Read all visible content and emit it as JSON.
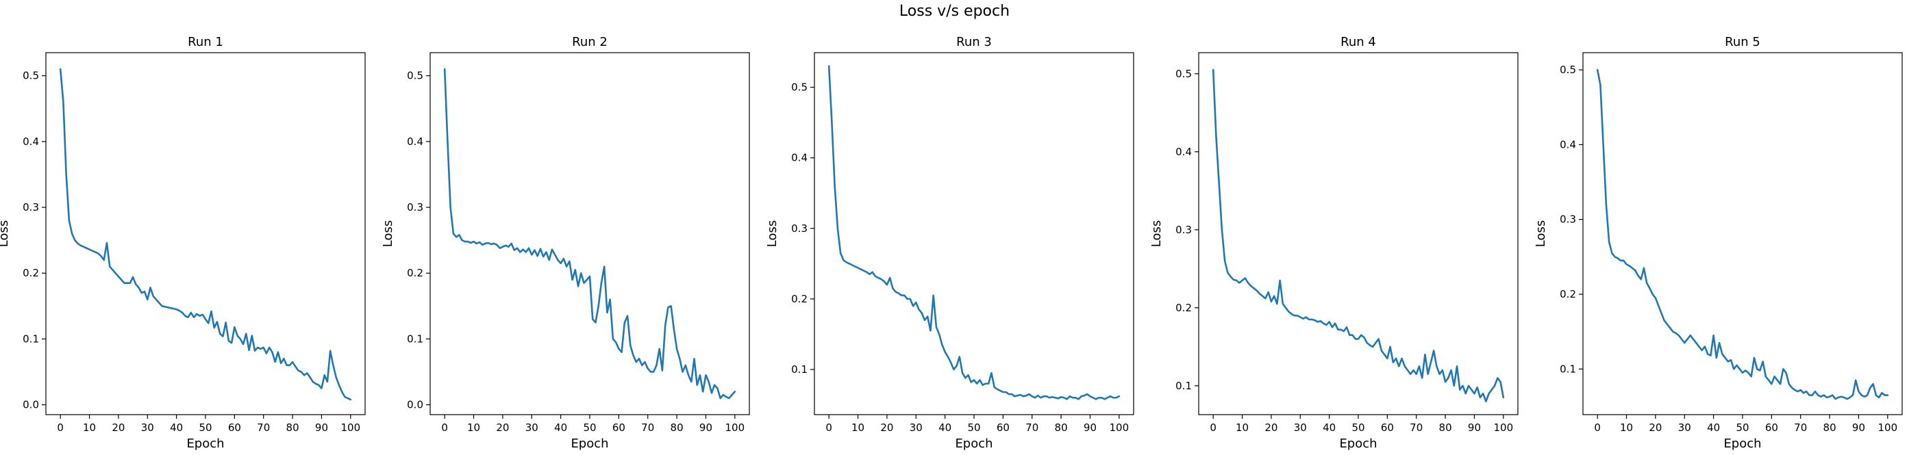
{
  "figure": {
    "title": "Loss v/s epoch"
  },
  "chart_data": [
    {
      "type": "line",
      "title": "Run 1",
      "xlabel": "Epoch",
      "ylabel": "Loss",
      "xlim": [
        -5,
        105
      ],
      "ylim": [
        -0.015,
        0.535
      ],
      "xticks": [
        0,
        10,
        20,
        30,
        40,
        50,
        60,
        70,
        80,
        90,
        100
      ],
      "yticks": [
        0.0,
        0.1,
        0.2,
        0.3,
        0.4,
        0.5
      ],
      "ytick_labels": [
        "0.0",
        "0.1",
        "0.2",
        "0.3",
        "0.4",
        "0.5"
      ],
      "grid": false,
      "color": "#1f77b4",
      "x": [
        0,
        1,
        2,
        3,
        4,
        5,
        6,
        7,
        8,
        9,
        10,
        11,
        12,
        13,
        14,
        15,
        16,
        17,
        18,
        19,
        20,
        21,
        22,
        23,
        24,
        25,
        26,
        27,
        28,
        29,
        30,
        31,
        32,
        33,
        34,
        35,
        36,
        37,
        38,
        39,
        40,
        41,
        42,
        43,
        44,
        45,
        46,
        47,
        48,
        49,
        50,
        51,
        52,
        53,
        54,
        55,
        56,
        57,
        58,
        59,
        60,
        61,
        62,
        63,
        64,
        65,
        66,
        67,
        68,
        69,
        70,
        71,
        72,
        73,
        74,
        75,
        76,
        77,
        78,
        79,
        80,
        81,
        82,
        83,
        84,
        85,
        86,
        87,
        88,
        89,
        90,
        91,
        92,
        93,
        94,
        95,
        96,
        97,
        98,
        99,
        100
      ],
      "y": [
        0.51,
        0.46,
        0.35,
        0.28,
        0.26,
        0.25,
        0.245,
        0.242,
        0.24,
        0.238,
        0.236,
        0.234,
        0.232,
        0.23,
        0.226,
        0.22,
        0.246,
        0.21,
        0.205,
        0.2,
        0.195,
        0.19,
        0.185,
        0.185,
        0.185,
        0.194,
        0.183,
        0.178,
        0.17,
        0.172,
        0.16,
        0.178,
        0.165,
        0.16,
        0.155,
        0.15,
        0.149,
        0.148,
        0.147,
        0.146,
        0.145,
        0.143,
        0.14,
        0.135,
        0.133,
        0.14,
        0.133,
        0.138,
        0.135,
        0.137,
        0.13,
        0.124,
        0.142,
        0.117,
        0.126,
        0.108,
        0.104,
        0.125,
        0.097,
        0.094,
        0.118,
        0.105,
        0.1,
        0.092,
        0.108,
        0.083,
        0.105,
        0.082,
        0.087,
        0.085,
        0.087,
        0.078,
        0.087,
        0.08,
        0.065,
        0.08,
        0.063,
        0.07,
        0.06,
        0.06,
        0.065,
        0.058,
        0.052,
        0.05,
        0.045,
        0.048,
        0.042,
        0.035,
        0.032,
        0.03,
        0.025,
        0.045,
        0.035,
        0.082,
        0.06,
        0.042,
        0.03,
        0.02,
        0.012,
        0.01,
        0.008
      ]
    },
    {
      "type": "line",
      "title": "Run 2",
      "xlabel": "Epoch",
      "ylabel": "Loss",
      "xlim": [
        -5,
        105
      ],
      "ylim": [
        -0.015,
        0.535
      ],
      "xticks": [
        0,
        10,
        20,
        30,
        40,
        50,
        60,
        70,
        80,
        90,
        100
      ],
      "yticks": [
        0.0,
        0.1,
        0.2,
        0.3,
        0.4,
        0.5
      ],
      "ytick_labels": [
        "0.0",
        "0.1",
        "0.2",
        "0.3",
        "0.4",
        "0.5"
      ],
      "grid": false,
      "color": "#1f77b4",
      "x": [
        0,
        1,
        2,
        3,
        4,
        5,
        6,
        7,
        8,
        9,
        10,
        11,
        12,
        13,
        14,
        15,
        16,
        17,
        18,
        19,
        20,
        21,
        22,
        23,
        24,
        25,
        26,
        27,
        28,
        29,
        30,
        31,
        32,
        33,
        34,
        35,
        36,
        37,
        38,
        39,
        40,
        41,
        42,
        43,
        44,
        45,
        46,
        47,
        48,
        49,
        50,
        51,
        52,
        53,
        54,
        55,
        56,
        57,
        58,
        59,
        60,
        61,
        62,
        63,
        64,
        65,
        66,
        67,
        68,
        69,
        70,
        71,
        72,
        73,
        74,
        75,
        76,
        77,
        78,
        79,
        80,
        81,
        82,
        83,
        84,
        85,
        86,
        87,
        88,
        89,
        90,
        91,
        92,
        93,
        94,
        95,
        96,
        97,
        98,
        99,
        100
      ],
      "y": [
        0.51,
        0.4,
        0.3,
        0.26,
        0.255,
        0.258,
        0.25,
        0.248,
        0.248,
        0.246,
        0.248,
        0.245,
        0.247,
        0.243,
        0.245,
        0.246,
        0.244,
        0.245,
        0.243,
        0.238,
        0.24,
        0.242,
        0.24,
        0.245,
        0.235,
        0.238,
        0.232,
        0.236,
        0.232,
        0.238,
        0.228,
        0.235,
        0.226,
        0.237,
        0.225,
        0.232,
        0.22,
        0.236,
        0.228,
        0.22,
        0.215,
        0.222,
        0.21,
        0.218,
        0.19,
        0.205,
        0.18,
        0.2,
        0.185,
        0.19,
        0.195,
        0.13,
        0.125,
        0.15,
        0.185,
        0.21,
        0.14,
        0.16,
        0.1,
        0.095,
        0.085,
        0.08,
        0.125,
        0.135,
        0.09,
        0.075,
        0.065,
        0.07,
        0.06,
        0.065,
        0.055,
        0.05,
        0.05,
        0.06,
        0.085,
        0.052,
        0.12,
        0.148,
        0.15,
        0.115,
        0.085,
        0.07,
        0.05,
        0.06,
        0.045,
        0.035,
        0.07,
        0.03,
        0.045,
        0.02,
        0.045,
        0.035,
        0.018,
        0.03,
        0.025,
        0.01,
        0.015,
        0.012,
        0.01,
        0.015,
        0.02
      ]
    },
    {
      "type": "line",
      "title": "Run 3",
      "xlabel": "Epoch",
      "ylabel": "Loss",
      "xlim": [
        -5,
        105
      ],
      "ylim": [
        0.036,
        0.549
      ],
      "xticks": [
        0,
        10,
        20,
        30,
        40,
        50,
        60,
        70,
        80,
        90,
        100
      ],
      "yticks": [
        0.1,
        0.2,
        0.3,
        0.4,
        0.5
      ],
      "ytick_labels": [
        "0.1",
        "0.2",
        "0.3",
        "0.4",
        "0.5"
      ],
      "grid": false,
      "color": "#1f77b4",
      "x": [
        0,
        1,
        2,
        3,
        4,
        5,
        6,
        7,
        8,
        9,
        10,
        11,
        12,
        13,
        14,
        15,
        16,
        17,
        18,
        19,
        20,
        21,
        22,
        23,
        24,
        25,
        26,
        27,
        28,
        29,
        30,
        31,
        32,
        33,
        34,
        35,
        36,
        37,
        38,
        39,
        40,
        41,
        42,
        43,
        44,
        45,
        46,
        47,
        48,
        49,
        50,
        51,
        52,
        53,
        54,
        55,
        56,
        57,
        58,
        59,
        60,
        61,
        62,
        63,
        64,
        65,
        66,
        67,
        68,
        69,
        70,
        71,
        72,
        73,
        74,
        75,
        76,
        77,
        78,
        79,
        80,
        81,
        82,
        83,
        84,
        85,
        86,
        87,
        88,
        89,
        90,
        91,
        92,
        93,
        94,
        95,
        96,
        97,
        98,
        99,
        100
      ],
      "y": [
        0.53,
        0.45,
        0.36,
        0.3,
        0.265,
        0.255,
        0.252,
        0.25,
        0.248,
        0.246,
        0.244,
        0.242,
        0.24,
        0.238,
        0.235,
        0.238,
        0.232,
        0.23,
        0.228,
        0.225,
        0.22,
        0.23,
        0.215,
        0.21,
        0.208,
        0.205,
        0.205,
        0.2,
        0.2,
        0.19,
        0.195,
        0.185,
        0.18,
        0.17,
        0.175,
        0.155,
        0.205,
        0.16,
        0.15,
        0.135,
        0.125,
        0.118,
        0.11,
        0.1,
        0.105,
        0.118,
        0.095,
        0.088,
        0.092,
        0.082,
        0.085,
        0.08,
        0.085,
        0.078,
        0.08,
        0.08,
        0.095,
        0.075,
        0.072,
        0.07,
        0.068,
        0.068,
        0.065,
        0.065,
        0.062,
        0.063,
        0.064,
        0.062,
        0.063,
        0.065,
        0.062,
        0.06,
        0.063,
        0.06,
        0.062,
        0.062,
        0.06,
        0.061,
        0.06,
        0.059,
        0.061,
        0.06,
        0.058,
        0.062,
        0.06,
        0.06,
        0.058,
        0.062,
        0.063,
        0.065,
        0.062,
        0.06,
        0.058,
        0.06,
        0.06,
        0.058,
        0.06,
        0.062,
        0.06,
        0.06,
        0.062
      ]
    },
    {
      "type": "line",
      "title": "Run 4",
      "xlabel": "Epoch",
      "ylabel": "Loss",
      "xlim": [
        -5,
        105
      ],
      "ylim": [
        0.063,
        0.527
      ],
      "xticks": [
        0,
        10,
        20,
        30,
        40,
        50,
        60,
        70,
        80,
        90,
        100
      ],
      "yticks": [
        0.1,
        0.2,
        0.3,
        0.4,
        0.5
      ],
      "ytick_labels": [
        "0.1",
        "0.2",
        "0.3",
        "0.4",
        "0.5"
      ],
      "grid": false,
      "color": "#1f77b4",
      "x": [
        0,
        1,
        2,
        3,
        4,
        5,
        6,
        7,
        8,
        9,
        10,
        11,
        12,
        13,
        14,
        15,
        16,
        17,
        18,
        19,
        20,
        21,
        22,
        23,
        24,
        25,
        26,
        27,
        28,
        29,
        30,
        31,
        32,
        33,
        34,
        35,
        36,
        37,
        38,
        39,
        40,
        41,
        42,
        43,
        44,
        45,
        46,
        47,
        48,
        49,
        50,
        51,
        52,
        53,
        54,
        55,
        56,
        57,
        58,
        59,
        60,
        61,
        62,
        63,
        64,
        65,
        66,
        67,
        68,
        69,
        70,
        71,
        72,
        73,
        74,
        75,
        76,
        77,
        78,
        79,
        80,
        81,
        82,
        83,
        84,
        85,
        86,
        87,
        88,
        89,
        90,
        91,
        92,
        93,
        94,
        95,
        96,
        97,
        98,
        99,
        100
      ],
      "y": [
        0.505,
        0.42,
        0.36,
        0.3,
        0.26,
        0.245,
        0.24,
        0.236,
        0.235,
        0.232,
        0.235,
        0.238,
        0.232,
        0.228,
        0.225,
        0.222,
        0.218,
        0.215,
        0.212,
        0.22,
        0.208,
        0.215,
        0.205,
        0.235,
        0.205,
        0.2,
        0.195,
        0.192,
        0.19,
        0.19,
        0.188,
        0.186,
        0.188,
        0.185,
        0.185,
        0.184,
        0.182,
        0.183,
        0.18,
        0.178,
        0.182,
        0.175,
        0.18,
        0.172,
        0.172,
        0.17,
        0.175,
        0.165,
        0.165,
        0.16,
        0.16,
        0.165,
        0.162,
        0.155,
        0.152,
        0.15,
        0.155,
        0.16,
        0.145,
        0.14,
        0.135,
        0.15,
        0.13,
        0.135,
        0.125,
        0.135,
        0.125,
        0.12,
        0.115,
        0.12,
        0.115,
        0.125,
        0.11,
        0.14,
        0.115,
        0.13,
        0.145,
        0.125,
        0.115,
        0.12,
        0.105,
        0.11,
        0.12,
        0.1,
        0.125,
        0.095,
        0.1,
        0.09,
        0.1,
        0.095,
        0.09,
        0.098,
        0.085,
        0.09,
        0.08,
        0.09,
        0.095,
        0.1,
        0.11,
        0.105,
        0.085
      ]
    },
    {
      "type": "line",
      "title": "Run 5",
      "xlabel": "Epoch",
      "ylabel": "Loss",
      "xlim": [
        -5,
        105
      ],
      "ylim": [
        0.039,
        0.523
      ],
      "xticks": [
        0,
        10,
        20,
        30,
        40,
        50,
        60,
        70,
        80,
        90,
        100
      ],
      "yticks": [
        0.1,
        0.2,
        0.3,
        0.4,
        0.5
      ],
      "ytick_labels": [
        "0.1",
        "0.2",
        "0.3",
        "0.4",
        "0.5"
      ],
      "grid": false,
      "color": "#1f77b4",
      "x": [
        0,
        1,
        2,
        3,
        4,
        5,
        6,
        7,
        8,
        9,
        10,
        11,
        12,
        13,
        14,
        15,
        16,
        17,
        18,
        19,
        20,
        21,
        22,
        23,
        24,
        25,
        26,
        27,
        28,
        29,
        30,
        31,
        32,
        33,
        34,
        35,
        36,
        37,
        38,
        39,
        40,
        41,
        42,
        43,
        44,
        45,
        46,
        47,
        48,
        49,
        50,
        51,
        52,
        53,
        54,
        55,
        56,
        57,
        58,
        59,
        60,
        61,
        62,
        63,
        64,
        65,
        66,
        67,
        68,
        69,
        70,
        71,
        72,
        73,
        74,
        75,
        76,
        77,
        78,
        79,
        80,
        81,
        82,
        83,
        84,
        85,
        86,
        87,
        88,
        89,
        90,
        91,
        92,
        93,
        94,
        95,
        96,
        97,
        98,
        99,
        100
      ],
      "y": [
        0.5,
        0.48,
        0.4,
        0.32,
        0.27,
        0.255,
        0.25,
        0.248,
        0.245,
        0.245,
        0.24,
        0.238,
        0.235,
        0.232,
        0.225,
        0.22,
        0.235,
        0.215,
        0.208,
        0.2,
        0.195,
        0.185,
        0.175,
        0.165,
        0.16,
        0.155,
        0.15,
        0.148,
        0.145,
        0.14,
        0.135,
        0.14,
        0.145,
        0.14,
        0.135,
        0.13,
        0.125,
        0.13,
        0.12,
        0.118,
        0.145,
        0.115,
        0.135,
        0.12,
        0.115,
        0.11,
        0.112,
        0.1,
        0.105,
        0.1,
        0.095,
        0.098,
        0.095,
        0.09,
        0.115,
        0.1,
        0.098,
        0.11,
        0.09,
        0.085,
        0.08,
        0.09,
        0.085,
        0.08,
        0.1,
        0.095,
        0.08,
        0.075,
        0.072,
        0.07,
        0.072,
        0.068,
        0.07,
        0.065,
        0.065,
        0.07,
        0.065,
        0.063,
        0.065,
        0.062,
        0.063,
        0.065,
        0.06,
        0.062,
        0.063,
        0.062,
        0.06,
        0.062,
        0.065,
        0.085,
        0.07,
        0.065,
        0.063,
        0.065,
        0.075,
        0.08,
        0.065,
        0.062,
        0.068,
        0.065,
        0.065
      ]
    }
  ]
}
